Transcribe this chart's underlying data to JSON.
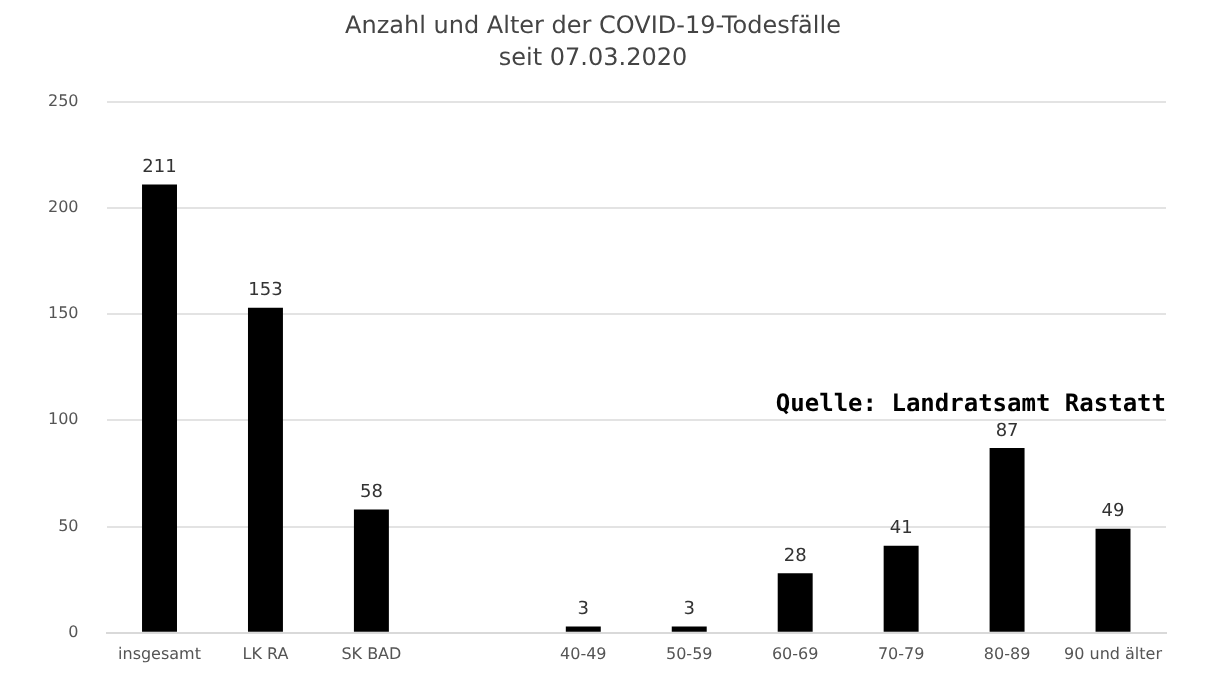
{
  "chart_data": {
    "type": "bar",
    "title": "Anzahl und Alter der COVID-19-Todesfälle",
    "subtitle": "seit 07.03.2020",
    "categories": [
      "insgesamt",
      "LK RA",
      "SK BAD",
      null,
      "40-49",
      "50-59",
      "60-69",
      "70-79",
      "80-89",
      "90 und älter"
    ],
    "values": [
      211,
      153,
      58,
      null,
      3,
      3,
      28,
      41,
      87,
      49
    ],
    "color": "#000000",
    "ylim": [
      0,
      250
    ],
    "yticks": [
      0,
      50,
      100,
      150,
      200,
      250
    ],
    "grid": "y",
    "legend": false,
    "data_labels": true,
    "annotations": [
      "Quelle: Landratsamt Rastatt"
    ]
  }
}
